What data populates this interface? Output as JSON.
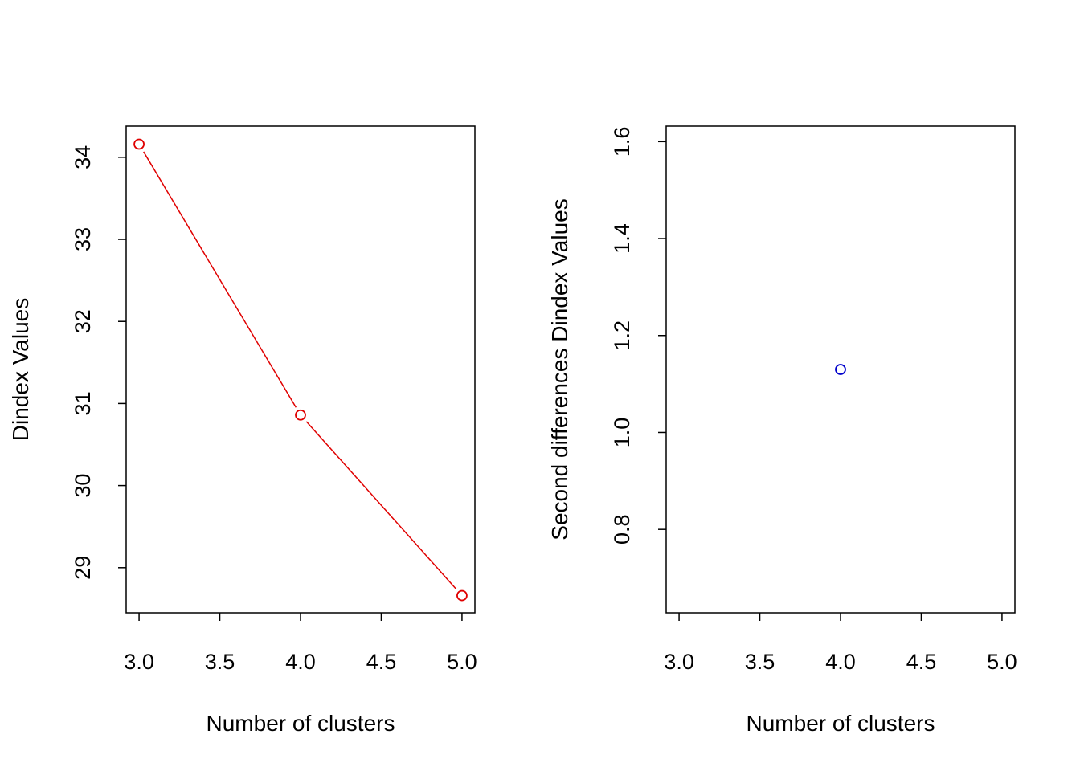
{
  "chart_data": [
    {
      "type": "scatter",
      "connected": true,
      "xlabel": "Number of clusters",
      "ylabel": "Dindex Values",
      "xlim": [
        2.92,
        5.08
      ],
      "ylim": [
        28.45,
        34.38
      ],
      "xticks": [
        "3.0",
        "3.5",
        "4.0",
        "4.5",
        "5.0"
      ],
      "yticks": [
        "29",
        "30",
        "31",
        "32",
        "33",
        "34"
      ],
      "series": [
        {
          "x": [
            3,
            4,
            5
          ],
          "y": [
            34.16,
            30.86,
            28.66
          ]
        }
      ],
      "color": "#e00000",
      "marker": "open-circle",
      "grid": false
    },
    {
      "type": "scatter",
      "connected": false,
      "xlabel": "Number of clusters",
      "ylabel": "Second differences Dindex Values",
      "xlim": [
        2.92,
        5.08
      ],
      "ylim": [
        0.628,
        1.632
      ],
      "xticks": [
        "3.0",
        "3.5",
        "4.0",
        "4.5",
        "5.0"
      ],
      "yticks": [
        "0.8",
        "1.0",
        "1.2",
        "1.4",
        "1.6"
      ],
      "series": [
        {
          "x": [
            4
          ],
          "y": [
            1.13
          ]
        }
      ],
      "color": "#0000cc",
      "marker": "open-circle",
      "grid": false
    }
  ]
}
